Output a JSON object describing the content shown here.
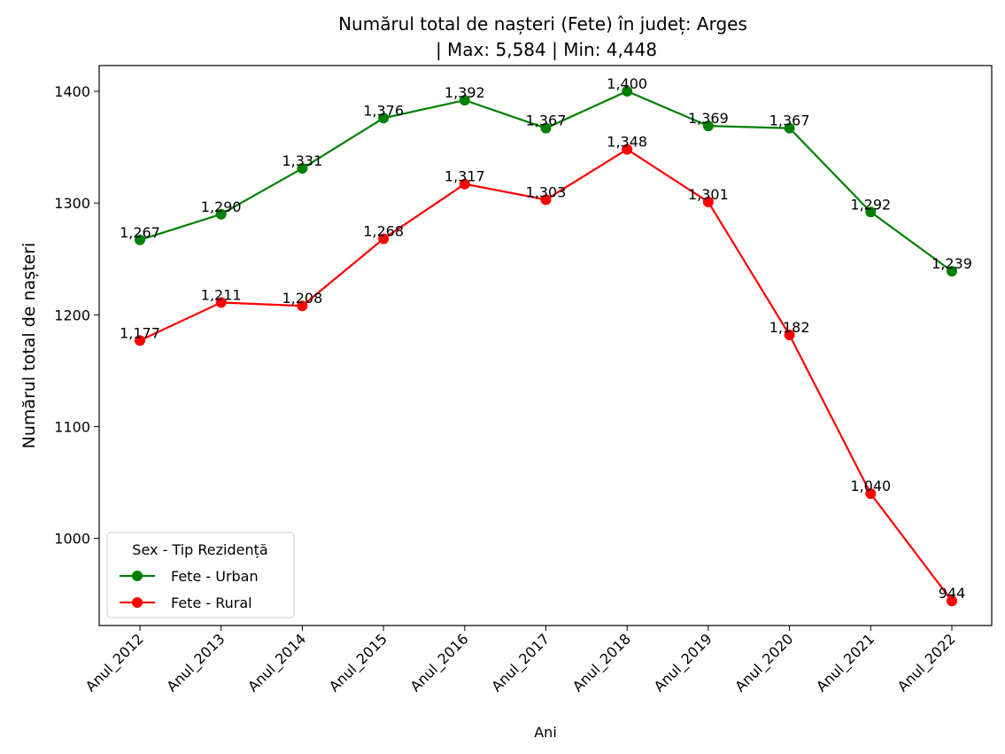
{
  "chart_data": {
    "type": "line",
    "title_line1": "Numărul total de nașteri (Fete) în județ: Arges",
    "title_line2": "| Max: 5,584 | Min: 4,448",
    "xlabel": "Ani",
    "ylabel": "Numărul total de nașteri",
    "categories": [
      "Anul_2012",
      "Anul_2013",
      "Anul_2014",
      "Anul_2015",
      "Anul_2016",
      "Anul_2017",
      "Anul_2018",
      "Anul_2019",
      "Anul_2020",
      "Anul_2021",
      "Anul_2022"
    ],
    "ylim": [
      922,
      1423
    ],
    "yticks": [
      1000,
      1100,
      1200,
      1300,
      1400
    ],
    "grid": false,
    "legend": {
      "title": "Sex - Tip Rezidență",
      "position": "lower-left"
    },
    "series": [
      {
        "name": "Fete - Urban",
        "color": "#008000",
        "values": [
          1267,
          1290,
          1331,
          1376,
          1392,
          1367,
          1400,
          1369,
          1367,
          1292,
          1239
        ]
      },
      {
        "name": "Fete - Rural",
        "color": "#ff0000",
        "values": [
          1177,
          1211,
          1208,
          1268,
          1317,
          1303,
          1348,
          1301,
          1182,
          1040,
          944
        ]
      }
    ]
  }
}
